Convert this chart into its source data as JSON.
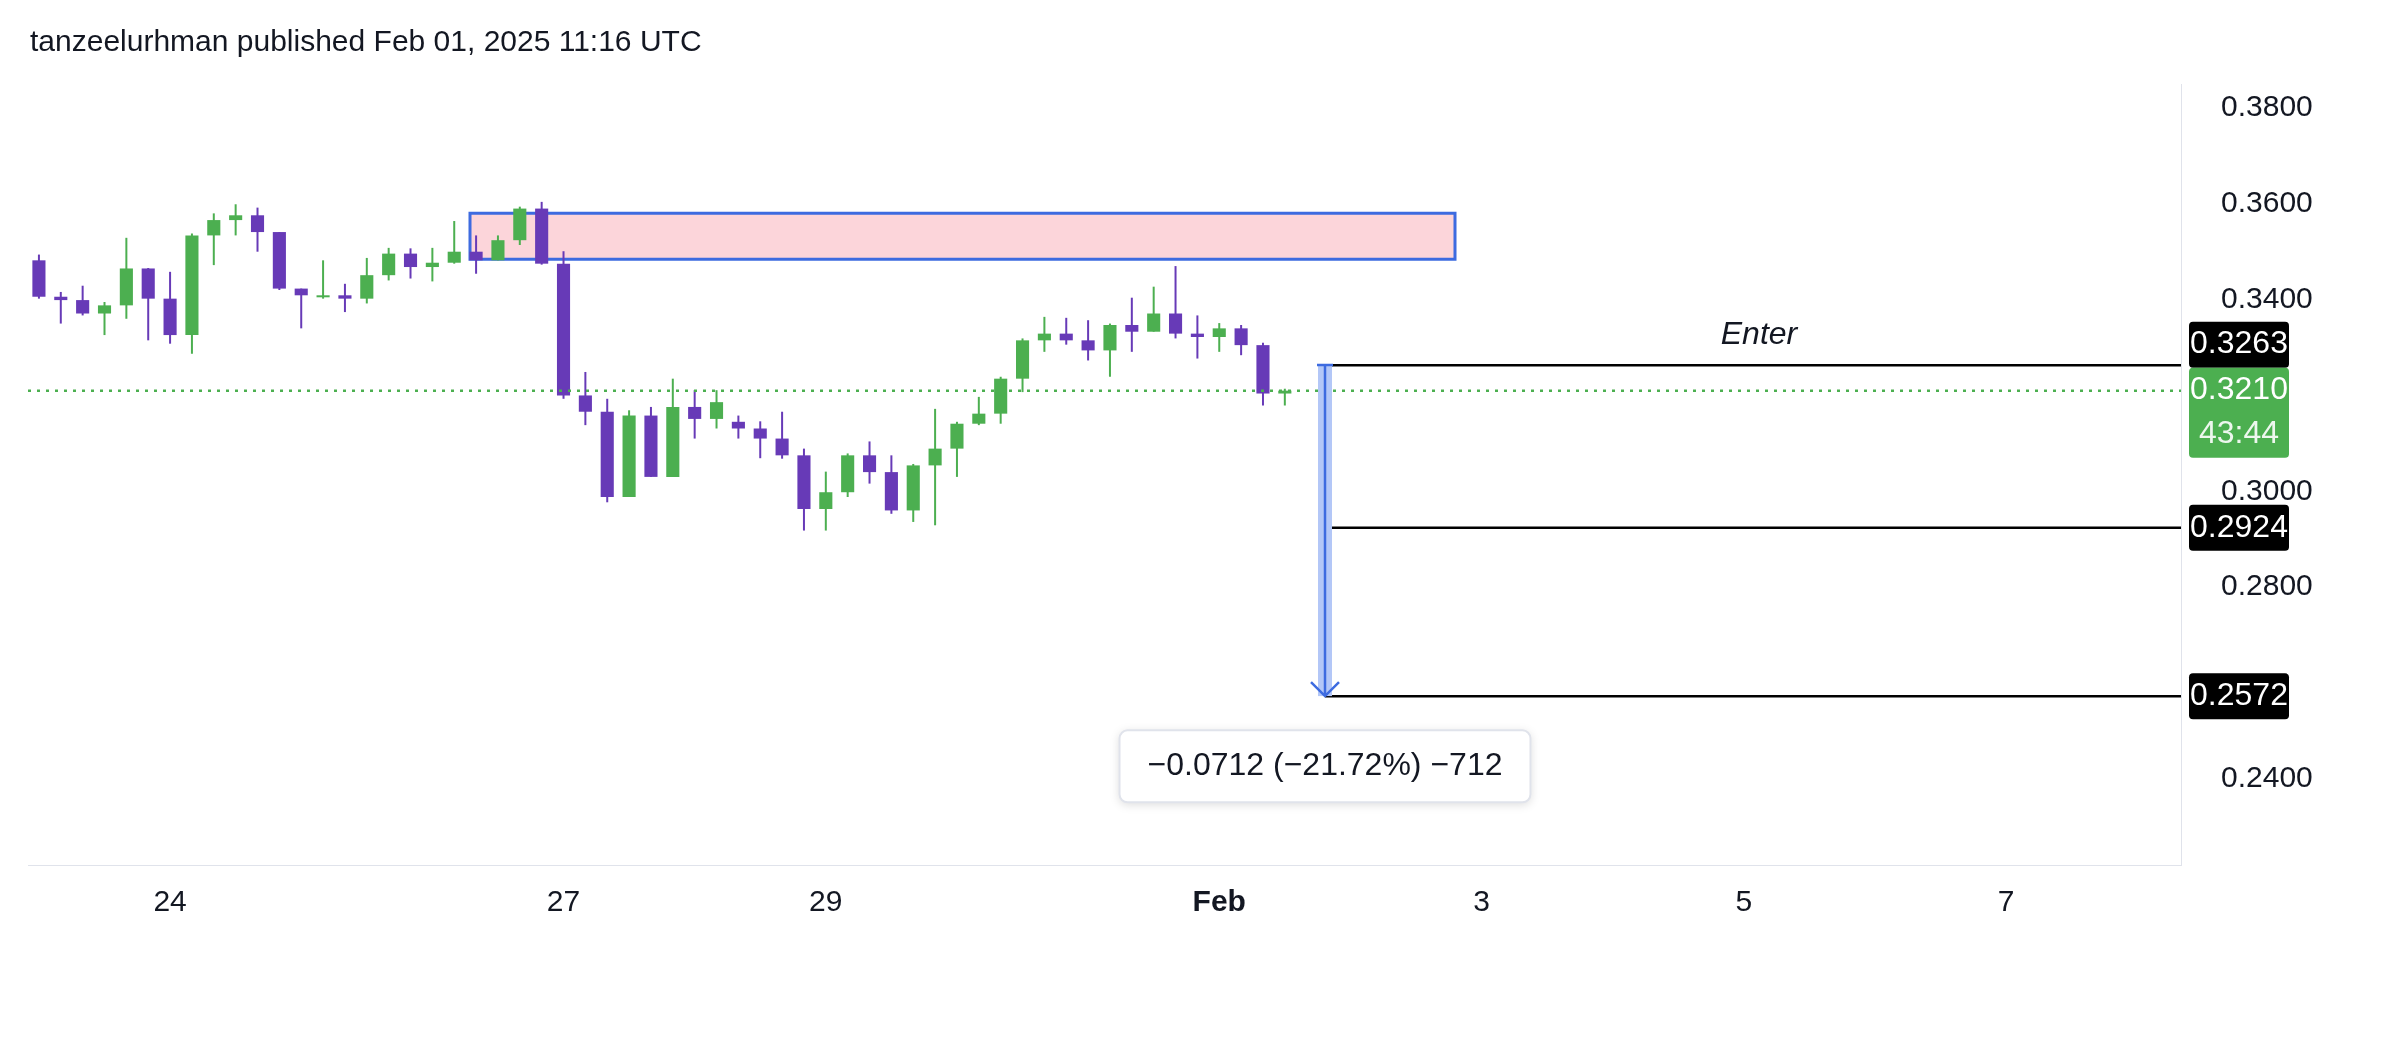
{
  "chart_data": {
    "type": "candlestick",
    "title": "tanzeelurhman published Feb 01, 2025 11:16 UTC",
    "x": [
      "2025-01-23T00:00",
      "2025-01-23T04:00",
      "2025-01-23T08:00",
      "2025-01-23T12:00",
      "2025-01-23T16:00",
      "2025-01-23T20:00",
      "2025-01-24T00:00",
      "2025-01-24T04:00",
      "2025-01-24T08:00",
      "2025-01-24T12:00",
      "2025-01-24T16:00",
      "2025-01-24T20:00",
      "2025-01-25T00:00",
      "2025-01-25T04:00",
      "2025-01-25T08:00",
      "2025-01-25T12:00",
      "2025-01-25T16:00",
      "2025-01-25T20:00",
      "2025-01-26T00:00",
      "2025-01-26T04:00",
      "2025-01-26T08:00",
      "2025-01-26T12:00",
      "2025-01-26T16:00",
      "2025-01-26T20:00",
      "2025-01-27T00:00",
      "2025-01-27T04:00",
      "2025-01-27T08:00",
      "2025-01-27T12:00",
      "2025-01-27T16:00",
      "2025-01-27T20:00",
      "2025-01-28T00:00",
      "2025-01-28T04:00",
      "2025-01-28T08:00",
      "2025-01-28T12:00",
      "2025-01-28T16:00",
      "2025-01-28T20:00",
      "2025-01-29T00:00",
      "2025-01-29T04:00",
      "2025-01-29T08:00",
      "2025-01-29T12:00",
      "2025-01-29T16:00",
      "2025-01-29T20:00",
      "2025-01-30T00:00",
      "2025-01-30T04:00",
      "2025-01-30T08:00",
      "2025-01-30T12:00",
      "2025-01-30T16:00",
      "2025-01-30T20:00",
      "2025-01-31T00:00",
      "2025-01-31T04:00",
      "2025-01-31T08:00",
      "2025-01-31T12:00",
      "2025-01-31T16:00",
      "2025-01-31T20:00",
      "2025-02-01T00:00",
      "2025-02-01T04:00",
      "2025-02-01T08:00",
      "2025-02-01T12:00"
    ],
    "ohlc": [
      [
        0.3482,
        0.3494,
        0.3402,
        0.3406
      ],
      [
        0.3406,
        0.3416,
        0.335,
        0.3399
      ],
      [
        0.3399,
        0.3429,
        0.3367,
        0.3371
      ],
      [
        0.3371,
        0.3395,
        0.3326,
        0.3388
      ],
      [
        0.3388,
        0.3529,
        0.336,
        0.3465
      ],
      [
        0.3465,
        0.3466,
        0.3315,
        0.3402
      ],
      [
        0.3402,
        0.3458,
        0.3308,
        0.3326
      ],
      [
        0.3326,
        0.3538,
        0.3287,
        0.3534
      ],
      [
        0.3534,
        0.358,
        0.3472,
        0.3566
      ],
      [
        0.3566,
        0.3599,
        0.3534,
        0.3576
      ],
      [
        0.3576,
        0.3592,
        0.35,
        0.3541
      ],
      [
        0.3541,
        0.3541,
        0.342,
        0.3423
      ],
      [
        0.3423,
        0.3423,
        0.334,
        0.3409
      ],
      [
        0.3409,
        0.3482,
        0.3402,
        0.3409
      ],
      [
        0.3409,
        0.3433,
        0.3374,
        0.3402
      ],
      [
        0.3402,
        0.3487,
        0.3392,
        0.3451
      ],
      [
        0.3451,
        0.3508,
        0.344,
        0.3496
      ],
      [
        0.3496,
        0.3507,
        0.3444,
        0.3468
      ],
      [
        0.3468,
        0.3508,
        0.3438,
        0.3477
      ],
      [
        0.3477,
        0.3564,
        0.3475,
        0.35
      ],
      [
        0.35,
        0.3534,
        0.3454,
        0.3482
      ],
      [
        0.3482,
        0.3534,
        0.3482,
        0.3524
      ],
      [
        0.3524,
        0.3594,
        0.3514,
        0.359
      ],
      [
        0.359,
        0.3604,
        0.3473,
        0.3475
      ],
      [
        0.3475,
        0.3501,
        0.3193,
        0.32
      ],
      [
        0.32,
        0.3249,
        0.3138,
        0.3166
      ],
      [
        0.3166,
        0.3193,
        0.2977,
        0.2988
      ],
      [
        0.2988,
        0.3169,
        0.2988,
        0.3158
      ],
      [
        0.3158,
        0.3176,
        0.303,
        0.303
      ],
      [
        0.303,
        0.3235,
        0.303,
        0.3176
      ],
      [
        0.3176,
        0.3211,
        0.311,
        0.3151
      ],
      [
        0.3151,
        0.3211,
        0.3131,
        0.3186
      ],
      [
        0.3145,
        0.3158,
        0.311,
        0.3131
      ],
      [
        0.3131,
        0.3146,
        0.3069,
        0.311
      ],
      [
        0.311,
        0.3166,
        0.3068,
        0.3075
      ],
      [
        0.3075,
        0.3089,
        0.2918,
        0.2963
      ],
      [
        0.2963,
        0.3041,
        0.2918,
        0.2998
      ],
      [
        0.2998,
        0.3079,
        0.2988,
        0.3075
      ],
      [
        0.3075,
        0.3104,
        0.3016,
        0.304
      ],
      [
        0.304,
        0.3075,
        0.2953,
        0.296
      ],
      [
        0.296,
        0.3057,
        0.2936,
        0.3054
      ],
      [
        0.3054,
        0.3172,
        0.2929,
        0.3089
      ],
      [
        0.3089,
        0.3145,
        0.303,
        0.3141
      ],
      [
        0.3141,
        0.3197,
        0.3138,
        0.3162
      ],
      [
        0.3162,
        0.3239,
        0.3141,
        0.3235
      ],
      [
        0.3235,
        0.3319,
        0.3207,
        0.3315
      ],
      [
        0.3315,
        0.3364,
        0.3291,
        0.3329
      ],
      [
        0.3329,
        0.3362,
        0.3306,
        0.3315
      ],
      [
        0.3315,
        0.3357,
        0.3273,
        0.3294
      ],
      [
        0.3294,
        0.335,
        0.3239,
        0.3347
      ],
      [
        0.3347,
        0.3404,
        0.3291,
        0.3333
      ],
      [
        0.3333,
        0.3427,
        0.3333,
        0.3371
      ],
      [
        0.3371,
        0.347,
        0.3319,
        0.3329
      ],
      [
        0.3329,
        0.3367,
        0.3277,
        0.3322
      ],
      [
        0.3322,
        0.3351,
        0.3291,
        0.334
      ],
      [
        0.334,
        0.3347,
        0.3284,
        0.3305
      ],
      [
        0.3305,
        0.331,
        0.3179,
        0.3204
      ],
      [
        0.3204,
        0.3214,
        0.3179,
        0.321
      ]
    ],
    "colors": [
      "#673ab7",
      "#673ab7",
      "#673ab7",
      "#4caf50",
      "#4caf50",
      "#673ab7",
      "#673ab7",
      "#4caf50",
      "#4caf50",
      "#4caf50",
      "#673ab7",
      "#673ab7",
      "#673ab7",
      "#4caf50",
      "#673ab7",
      "#4caf50",
      "#4caf50",
      "#673ab7",
      "#4caf50",
      "#4caf50",
      "#673ab7",
      "#4caf50",
      "#4caf50",
      "#673ab7",
      "#673ab7",
      "#673ab7",
      "#673ab7",
      "#4caf50",
      "#673ab7",
      "#4caf50",
      "#673ab7",
      "#4caf50",
      "#673ab7",
      "#673ab7",
      "#673ab7",
      "#673ab7",
      "#4caf50",
      "#4caf50",
      "#673ab7",
      "#673ab7",
      "#4caf50",
      "#4caf50",
      "#4caf50",
      "#4caf50",
      "#4caf50",
      "#4caf50",
      "#4caf50",
      "#673ab7",
      "#673ab7",
      "#4caf50",
      "#673ab7",
      "#4caf50",
      "#673ab7",
      "#673ab7",
      "#4caf50",
      "#673ab7",
      "#673ab7",
      "#4caf50"
    ],
    "xlim": [
      "2025-01-22T22:00",
      "2025-02-08T08:00"
    ],
    "xticks": [
      {
        "value": "2025-01-24",
        "label": "24"
      },
      {
        "value": "2025-01-27",
        "label": "27"
      },
      {
        "value": "2025-01-29",
        "label": "29"
      },
      {
        "value": "2025-02-01",
        "label": "Feb"
      },
      {
        "value": "2025-02-03",
        "label": "3"
      },
      {
        "value": "2025-02-05",
        "label": "5"
      },
      {
        "value": "2025-02-07",
        "label": "7"
      }
    ],
    "ylim": [
      0.222,
      0.385
    ],
    "yticks": [
      {
        "value": 0.24,
        "label": "0.2400"
      },
      {
        "value": 0.28,
        "label": "0.2800"
      },
      {
        "value": 0.3,
        "label": "0.3000"
      },
      {
        "value": 0.34,
        "label": "0.3400"
      },
      {
        "value": 0.36,
        "label": "0.3600"
      },
      {
        "value": 0.38,
        "label": "0.3800"
      }
    ],
    "ref_lines": [
      {
        "axis": "y",
        "value": 0.3263,
        "label": "0.3263",
        "color": "#000000",
        "line_style": "solid"
      },
      {
        "axis": "y",
        "value": 0.321,
        "label": "0.3210",
        "color": "#4caf50",
        "line_style": "dotted"
      },
      {
        "axis": "y",
        "value": 0.2924,
        "label": "0.2924",
        "color": "#000000",
        "line_style": "solid"
      },
      {
        "axis": "y",
        "value": 0.2572,
        "label": "0.2572",
        "color": "#000000",
        "line_style": "solid"
      }
    ],
    "bands": [
      {
        "axis": "y",
        "from": 0.3484,
        "to": 0.358,
        "color": "#fcd5da"
      }
    ],
    "annotations": [
      "Enter",
      "−0.0712 (−21.72%) −712",
      "43:44"
    ]
  }
}
